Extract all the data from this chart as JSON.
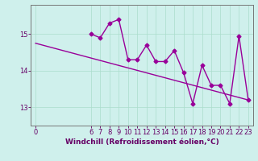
{
  "xlabel": "Windchill (Refroidissement éolien,°C)",
  "background_color": "#cff0ec",
  "line_color": "#990099",
  "trend_color": "#990099",
  "x_data": [
    6,
    7,
    8,
    9,
    10,
    11,
    12,
    13,
    14,
    15,
    16,
    17,
    18,
    19,
    20,
    21,
    22,
    23
  ],
  "y_data": [
    15.0,
    14.9,
    15.3,
    15.4,
    14.3,
    14.3,
    14.7,
    14.25,
    14.25,
    14.55,
    13.95,
    13.1,
    14.15,
    13.6,
    13.6,
    13.1,
    14.95,
    13.2
  ],
  "trend_x": [
    0,
    23
  ],
  "trend_y": [
    14.75,
    13.2
  ],
  "yticks": [
    13,
    14,
    15
  ],
  "xticks": [
    0,
    6,
    7,
    8,
    9,
    10,
    11,
    12,
    13,
    14,
    15,
    16,
    17,
    18,
    19,
    20,
    21,
    22,
    23
  ],
  "ylim": [
    12.5,
    15.8
  ],
  "xlim": [
    -0.5,
    23.5
  ],
  "grid_color": "#aaddcc",
  "marker": "D",
  "markersize": 2.5,
  "linewidth": 1.0,
  "tick_fontsize": 6.0,
  "xlabel_fontsize": 6.5
}
